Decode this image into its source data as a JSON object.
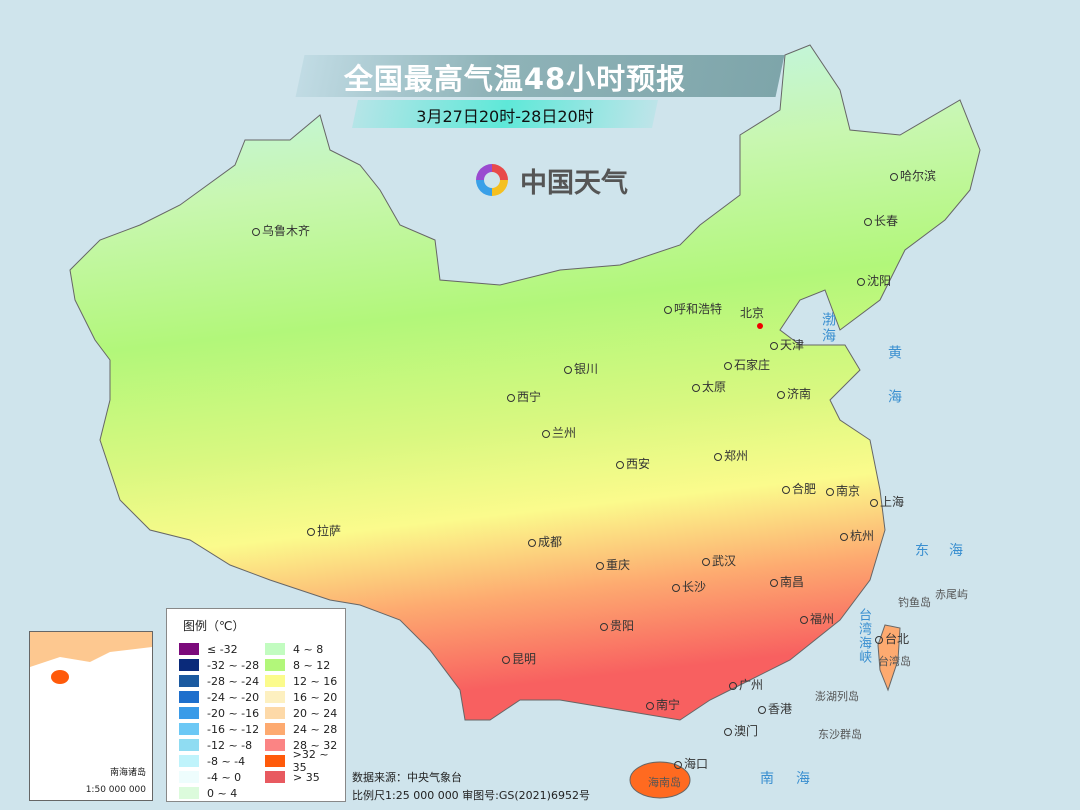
{
  "header": {
    "title": "全国最高气温48小时预报",
    "subtitle": "3月27日20时-28日20时"
  },
  "logo": {
    "text": "中国天气",
    "icon": "swirl-logo-icon"
  },
  "capital": "北京",
  "cities": [
    "哈尔滨",
    "长春",
    "沈阳",
    "乌鲁木齐",
    "呼和浩特",
    "天津",
    "石家庄",
    "银川",
    "太原",
    "济南",
    "西宁",
    "兰州",
    "郑州",
    "西安",
    "合肥",
    "南京",
    "上海",
    "拉萨",
    "成都",
    "武汉",
    "杭州",
    "重庆",
    "长沙",
    "南昌",
    "福州",
    "台北",
    "贵阳",
    "昆明",
    "广州",
    "香港",
    "澳门",
    "南宁",
    "海口"
  ],
  "seas": {
    "bohai": "渤海",
    "huanghai": "黄海",
    "donghai": "东海",
    "nanhai": "南海",
    "taiwan_strait": "台湾海峡"
  },
  "islands": [
    "钓鱼岛",
    "赤尾屿",
    "台湾岛",
    "澎湖列岛",
    "东沙群岛",
    "海南岛"
  ],
  "legend": {
    "title": "图例（℃）",
    "items": [
      {
        "label": "≤ -32",
        "color": "#7b0a7b"
      },
      {
        "label": "-32 ~ -28",
        "color": "#0a2a7a"
      },
      {
        "label": "-28 ~ -24",
        "color": "#1b5aa0"
      },
      {
        "label": "-24 ~ -20",
        "color": "#1e6fcc"
      },
      {
        "label": "-20 ~ -16",
        "color": "#3a9be8"
      },
      {
        "label": "-16 ~ -12",
        "color": "#6cc8f5"
      },
      {
        "label": "-12 ~ -8",
        "color": "#8fdcf2"
      },
      {
        "label": "-8 ~ -4",
        "color": "#bff3fb"
      },
      {
        "label": "-4 ~ 0",
        "color": "#eefdfd"
      },
      {
        "label": "0 ~ 4",
        "color": "#dcfbdc"
      },
      {
        "label": "4 ~ 8",
        "color": "#c2fcc0"
      },
      {
        "label": "8 ~ 12",
        "color": "#b2f77a"
      },
      {
        "label": "12 ~ 16",
        "color": "#fbfb8c"
      },
      {
        "label": "16 ~ 20",
        "color": "#fdf0c0"
      },
      {
        "label": "20 ~ 24",
        "color": "#fdd9a8"
      },
      {
        "label": "24 ~ 28",
        "color": "#fdaa70"
      },
      {
        "label": "28 ~ 32",
        "color": "#fb8484"
      },
      {
        "label": ">32 ~ 35",
        "color": "#ff5a0a"
      },
      {
        "label": "> 35",
        "color": "#e85a60"
      }
    ]
  },
  "footer": {
    "source": "数据来源：中央气象台",
    "scale": "比例尺1:25 000 000   审图号:GS(2021)6952号"
  },
  "inset": {
    "name": "南海诸岛",
    "scale": "1:50 000 000"
  }
}
